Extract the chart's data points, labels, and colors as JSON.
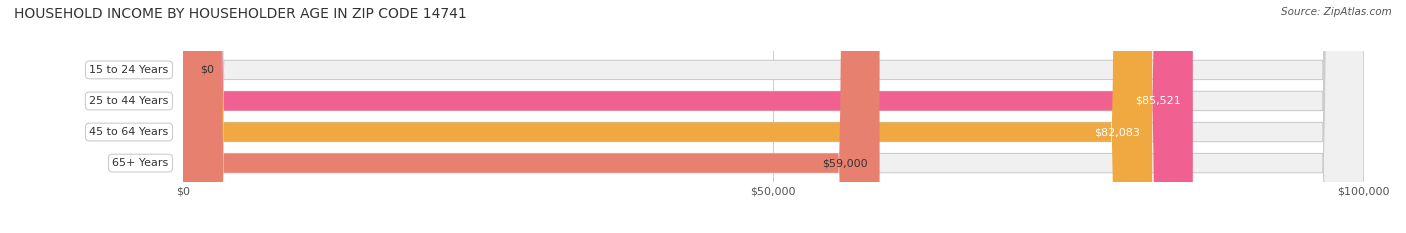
{
  "title": "HOUSEHOLD INCOME BY HOUSEHOLDER AGE IN ZIP CODE 14741",
  "source": "Source: ZipAtlas.com",
  "categories": [
    "15 to 24 Years",
    "25 to 44 Years",
    "45 to 64 Years",
    "65+ Years"
  ],
  "values": [
    0,
    85521,
    82083,
    59000
  ],
  "bar_colors": [
    "#a8a8d8",
    "#f06090",
    "#f0a840",
    "#e88070"
  ],
  "bar_bg_color": "#f0f0f0",
  "label_colors": [
    "#555555",
    "#ffffff",
    "#ffffff",
    "#333333"
  ],
  "value_labels": [
    "$0",
    "$85,521",
    "$82,083",
    "$59,000"
  ],
  "xlim": [
    0,
    100000
  ],
  "xticks": [
    0,
    50000,
    100000
  ],
  "xtick_labels": [
    "$0",
    "$50,000",
    "$100,000"
  ],
  "background_color": "#ffffff",
  "bar_height": 0.62,
  "figsize": [
    14.06,
    2.33
  ],
  "dpi": 100
}
